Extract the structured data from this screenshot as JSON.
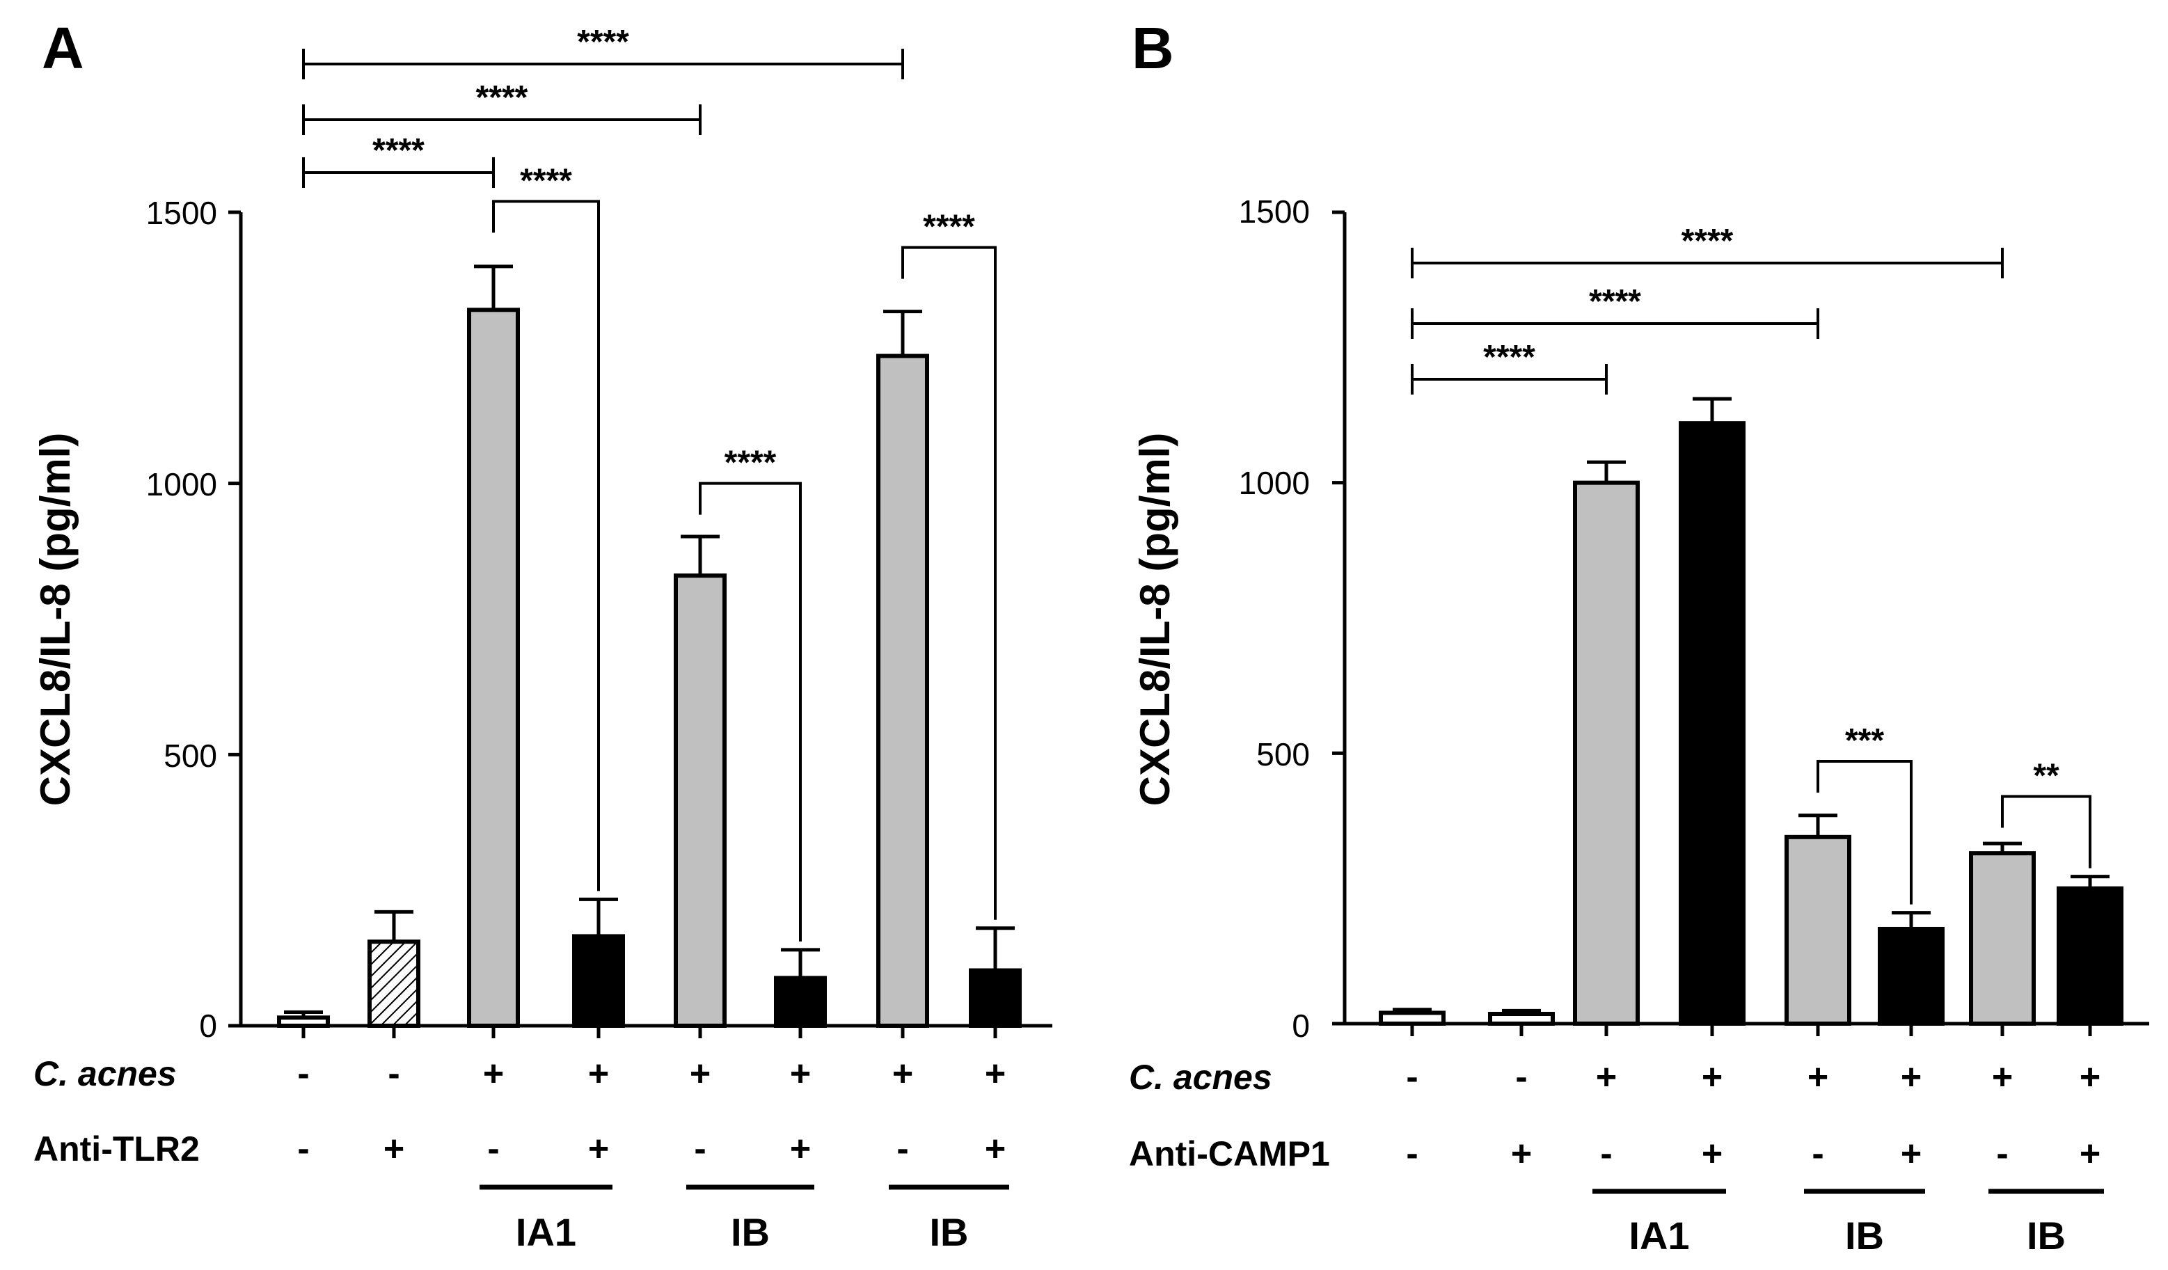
{
  "chart_data": [
    {
      "panel": "A",
      "type": "bar",
      "ylabel": "CXCL8/IL-8 (pg/ml)",
      "ylim": [
        0,
        1500
      ],
      "yticks": [
        "0",
        "500",
        "1000",
        "1500"
      ],
      "values": [
        15,
        155,
        1320,
        165,
        830,
        88,
        1235,
        102
      ],
      "errors": [
        10,
        55,
        80,
        68,
        72,
        52,
        82,
        78
      ],
      "fills": [
        "#ffffff",
        "hatch",
        "#c0c0c0",
        "#000000",
        "#c0c0c0",
        "#000000",
        "#c0c0c0",
        "#000000"
      ],
      "rows": [
        {
          "label": "C. acnes",
          "italic": true,
          "signs": [
            "-",
            "-",
            "+",
            "+",
            "+",
            "+",
            "+",
            "+"
          ]
        },
        {
          "label": "Anti-TLR2",
          "italic": false,
          "signs": [
            "-",
            "+",
            "-",
            "+",
            "-",
            "+",
            "-",
            "+"
          ]
        }
      ],
      "groups": [
        {
          "label": "IA1",
          "bars": [
            2,
            3
          ]
        },
        {
          "label": "IB",
          "bars": [
            4,
            5
          ]
        },
        {
          "label": "IB",
          "bars": [
            6,
            7
          ]
        }
      ],
      "brackets": [
        {
          "from": 0,
          "to": 6,
          "label": "****",
          "style": "line",
          "level": 0
        },
        {
          "from": 0,
          "to": 4,
          "label": "****",
          "style": "line",
          "level": 1
        },
        {
          "from": 0,
          "to": 2,
          "label": "****",
          "style": "line",
          "level": 2
        },
        {
          "from": 2,
          "to": 3,
          "label": "****",
          "style": "drop",
          "value": 1520
        },
        {
          "from": 4,
          "to": 5,
          "label": "****",
          "style": "drop",
          "value": 1000
        },
        {
          "from": 6,
          "to": 7,
          "label": "****",
          "style": "drop",
          "value": 1435
        }
      ]
    },
    {
      "panel": "B",
      "type": "bar",
      "ylabel": "CXCL8/IL-8 (pg/ml)",
      "ylim": [
        0,
        1500
      ],
      "yticks": [
        "0",
        "500",
        "1000",
        "1500"
      ],
      "values": [
        20,
        18,
        1000,
        1110,
        345,
        175,
        315,
        250
      ],
      "errors": [
        6,
        6,
        38,
        45,
        40,
        30,
        18,
        22
      ],
      "fills": [
        "#ffffff",
        "#ffffff",
        "#c0c0c0",
        "#000000",
        "#c0c0c0",
        "#000000",
        "#c0c0c0",
        "#000000"
      ],
      "rows": [
        {
          "label": "C. acnes",
          "italic": true,
          "signs": [
            "-",
            "-",
            "+",
            "+",
            "+",
            "+",
            "+",
            "+"
          ]
        },
        {
          "label": "Anti-CAMP1",
          "italic": false,
          "signs": [
            "-",
            "+",
            "-",
            "+",
            "-",
            "+",
            "-",
            "+"
          ]
        }
      ],
      "groups": [
        {
          "label": "IA1",
          "bars": [
            2,
            3
          ]
        },
        {
          "label": "IB",
          "bars": [
            4,
            5
          ]
        },
        {
          "label": "IB",
          "bars": [
            6,
            7
          ]
        }
      ],
      "brackets": [
        {
          "from": 0,
          "to": 6,
          "label": "****",
          "style": "line",
          "level": 0
        },
        {
          "from": 0,
          "to": 4,
          "label": "****",
          "style": "line",
          "level": 1
        },
        {
          "from": 0,
          "to": 2,
          "label": "****",
          "style": "line",
          "level": 2
        },
        {
          "from": 4,
          "to": 5,
          "label": "***",
          "style": "drop",
          "value": 485
        },
        {
          "from": 6,
          "to": 7,
          "label": "**",
          "style": "drop",
          "value": 420
        }
      ]
    }
  ]
}
